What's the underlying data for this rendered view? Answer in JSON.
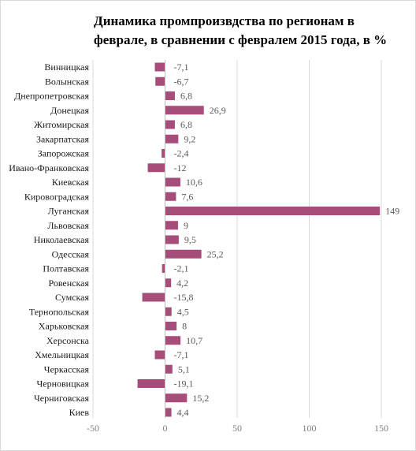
{
  "chart_data": {
    "type": "bar",
    "orientation": "horizontal",
    "title": "Динамика промпроизвдства по регионам в феврале, в сравнении с февралем 2015 года, в %",
    "title_lines": [
      "Динамика промпроизвдства по регионам в",
      "феврале, в сравнении с февралем 2015 года, в %"
    ],
    "categories": [
      "Винницкая",
      "Волынская",
      "Днепропетровская",
      "Донецкая",
      "Житомирская",
      "Закарпатская",
      "Запорожская",
      "Ивано-Франковская",
      "Киевская",
      "Кировоградская",
      "Луганская",
      "Львовская",
      "Николаевская",
      "Одесская",
      "Полтавская",
      "Ровенская",
      "Сумская",
      "Тернопольская",
      "Харьковская",
      "Херсонска",
      "Хмельницкая",
      "Черкасская",
      "Черновицкая",
      "Черниговская",
      "Киев"
    ],
    "values": [
      -7.1,
      -6.7,
      6.8,
      26.9,
      6.8,
      9.2,
      -2.4,
      -12,
      10.6,
      7.6,
      149,
      9,
      9.5,
      25.2,
      -2.1,
      4.2,
      -15.8,
      4.5,
      8,
      10.7,
      -7.1,
      5.1,
      -19.1,
      15.2,
      4.4
    ],
    "value_labels": [
      "-7,1",
      "-6,7",
      "6,8",
      "26,9",
      "6,8",
      "9,2",
      "-2,4",
      "-12",
      "10,6",
      "7,6",
      "149",
      "9",
      "9,5",
      "25,2",
      "-2,1",
      "4,2",
      "-15,8",
      "4,5",
      "8",
      "10,7",
      "-7,1",
      "5,1",
      "-19,1",
      "15,2",
      "4,4"
    ],
    "xlim": [
      -50,
      150
    ],
    "xticks": [
      -50,
      0,
      50,
      100,
      150
    ],
    "xtick_labels": [
      "-50",
      "0",
      "50",
      "100",
      "150"
    ],
    "grid": "vertical",
    "legend": "none",
    "bar_color": "#a64d79",
    "grid_color": "#d9d9d9"
  }
}
